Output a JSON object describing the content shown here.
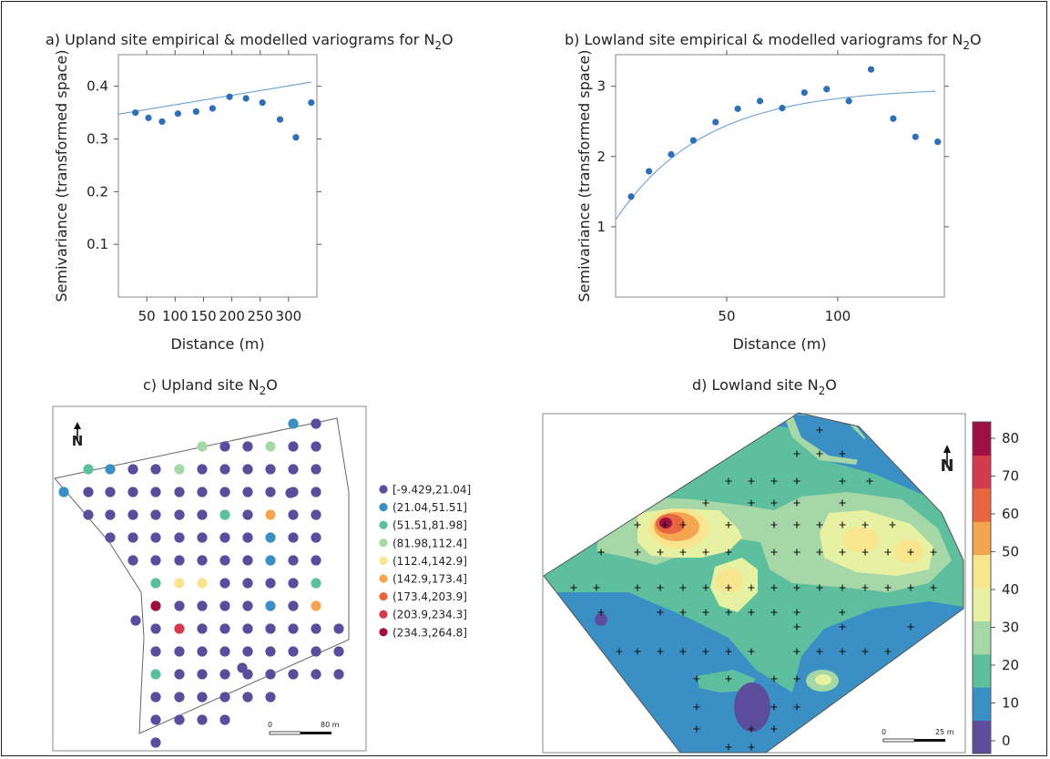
{
  "chart_data": [
    {
      "panel": "a",
      "type": "scatter",
      "title_main": "a) Upland site empirical & modelled variograms for N",
      "title_sub": "2",
      "title_end": "O",
      "xlabel": "Distance (m)",
      "ylabel": "Semivariance (transformed space)",
      "xlim": [
        0,
        350
      ],
      "ylim": [
        0,
        0.46
      ],
      "xticks": [
        50,
        100,
        150,
        200,
        250,
        300
      ],
      "yticks": [
        0.1,
        0.2,
        0.3,
        0.4
      ],
      "series": [
        {
          "x": [
            30,
            53,
            77,
            105,
            137,
            166,
            196,
            225,
            254,
            285,
            313,
            340
          ],
          "y": [
            0.35,
            0.34,
            0.333,
            0.348,
            0.352,
            0.358,
            0.38,
            0.377,
            0.369,
            0.337,
            0.303,
            0.369
          ]
        }
      ],
      "model_line": {
        "x": [
          0,
          340
        ],
        "y": [
          0.347,
          0.408
        ]
      },
      "grid": false
    },
    {
      "panel": "b",
      "type": "scatter",
      "title_main": "b) Lowland site empirical & modelled variograms for N",
      "title_sub": "2",
      "title_end": "O",
      "xlabel": "Distance (m)",
      "ylabel": "Semivariance (transformed space)",
      "xlim": [
        0,
        148
      ],
      "ylim": [
        0,
        3.45
      ],
      "xticks": [
        50,
        100
      ],
      "yticks": [
        1,
        2,
        3
      ],
      "series": [
        {
          "x": [
            7,
            15,
            25,
            35,
            45,
            55,
            65,
            75,
            85,
            95,
            105,
            115,
            125,
            135,
            145
          ],
          "y": [
            1.43,
            1.79,
            2.03,
            2.23,
            2.49,
            2.68,
            2.79,
            2.69,
            2.91,
            2.96,
            2.79,
            3.24,
            2.54,
            2.28,
            2.21
          ]
        }
      ],
      "model_curve": {
        "nugget": 1.1,
        "sill": 1.88,
        "range": 40
      },
      "grid": false
    },
    {
      "panel": "c",
      "type": "scatter",
      "title_main": "c) Upland site N",
      "title_sub": "2",
      "title_end": "O",
      "legend": [
        {
          "label": "[-9.429,21.04]",
          "color": "#5b4d9c"
        },
        {
          "label": "(21.04,51.51]",
          "color": "#3a8fc4"
        },
        {
          "label": "(51.51,81.98]",
          "color": "#5dbf9d"
        },
        {
          "label": "(81.98,112.4]",
          "color": "#a6d7a6"
        },
        {
          "label": "(112.4,142.9]",
          "color": "#fae58f"
        },
        {
          "label": "(142.9,173.4]",
          "color": "#f4a550"
        },
        {
          "label": "(173.4,203.9]",
          "color": "#e8663f"
        },
        {
          "label": "(203.9,234.3]",
          "color": "#d33b4d"
        },
        {
          "label": "(234.3,264.8]",
          "color": "#9e0f42"
        }
      ],
      "scale_labels": [
        "0",
        "80 m"
      ],
      "north_label": "N"
    },
    {
      "panel": "d",
      "type": "heatmap",
      "title_main": "d) Lowland site N",
      "title_sub": "2",
      "title_end": "O",
      "colorbar": {
        "ticks": [
          0,
          10,
          20,
          30,
          40,
          50,
          60,
          70,
          80
        ],
        "colors": [
          "#5b4d9c",
          "#3a8fc4",
          "#5dbf9d",
          "#a6d7a6",
          "#e6f2a2",
          "#fae58f",
          "#f4a550",
          "#e8663f",
          "#d33b4d",
          "#9e0f42"
        ]
      },
      "scale_labels": [
        "0",
        "25 m"
      ],
      "north_label": "N"
    }
  ]
}
